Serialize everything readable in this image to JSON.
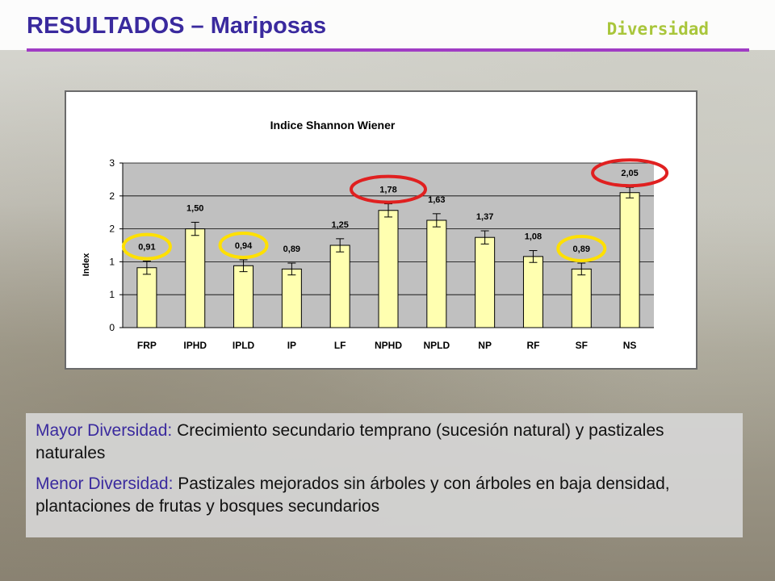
{
  "slide": {
    "title": "RESULTADOS – Mariposas",
    "subtitle": "Diversidad",
    "colors": {
      "title": "#3a2a9e",
      "subtitle": "#a9c63b",
      "rule": "#a03cc4",
      "bar": "#ffffb0",
      "plot_bg": "#c0c0c0",
      "highlight_red": "#e02020",
      "highlight_yellow": "#ffe000"
    }
  },
  "chart_data": {
    "type": "bar",
    "title": "Indice Shannon Wiener",
    "ylabel": "Index",
    "xlabel": "",
    "ylim": [
      0,
      2.5
    ],
    "grid": true,
    "y_ticks": [
      0,
      0.5,
      1,
      1.5,
      2,
      2.5
    ],
    "y_tick_labels": [
      "0",
      "1",
      "1",
      "2",
      "2",
      "3"
    ],
    "categories": [
      "FRP",
      "IPHD",
      "IPLD",
      "IP",
      "LF",
      "NPHD",
      "NPLD",
      "NP",
      "RF",
      "SF",
      "NS"
    ],
    "values": [
      0.91,
      1.5,
      0.94,
      0.89,
      1.25,
      1.78,
      1.63,
      1.37,
      1.08,
      0.89,
      2.05
    ],
    "value_labels": [
      "0,91",
      "1,50",
      "0,94",
      "0,89",
      "1,25",
      "1,78",
      "1,63",
      "1,37",
      "1,08",
      "0,89",
      "2,05"
    ],
    "error": [
      0.1,
      0.1,
      0.09,
      0.09,
      0.1,
      0.1,
      0.1,
      0.1,
      0.09,
      0.09,
      0.08
    ],
    "highlights": [
      {
        "category": "FRP",
        "color": "yellow"
      },
      {
        "category": "IPLD",
        "color": "yellow"
      },
      {
        "category": "SF",
        "color": "yellow"
      },
      {
        "category": "NPHD",
        "color": "red"
      },
      {
        "category": "NS",
        "color": "red"
      }
    ]
  },
  "panel": {
    "p1_lead": "Mayor Diversidad:",
    "p1_text": " Crecimiento secundario temprano (sucesión natural) y pastizales naturales",
    "p2_lead": "Menor Diversidad:",
    "p2_text": " Pastizales mejorados sin árboles y con árboles en baja densidad, plantaciones de frutas y bosques secundarios"
  }
}
